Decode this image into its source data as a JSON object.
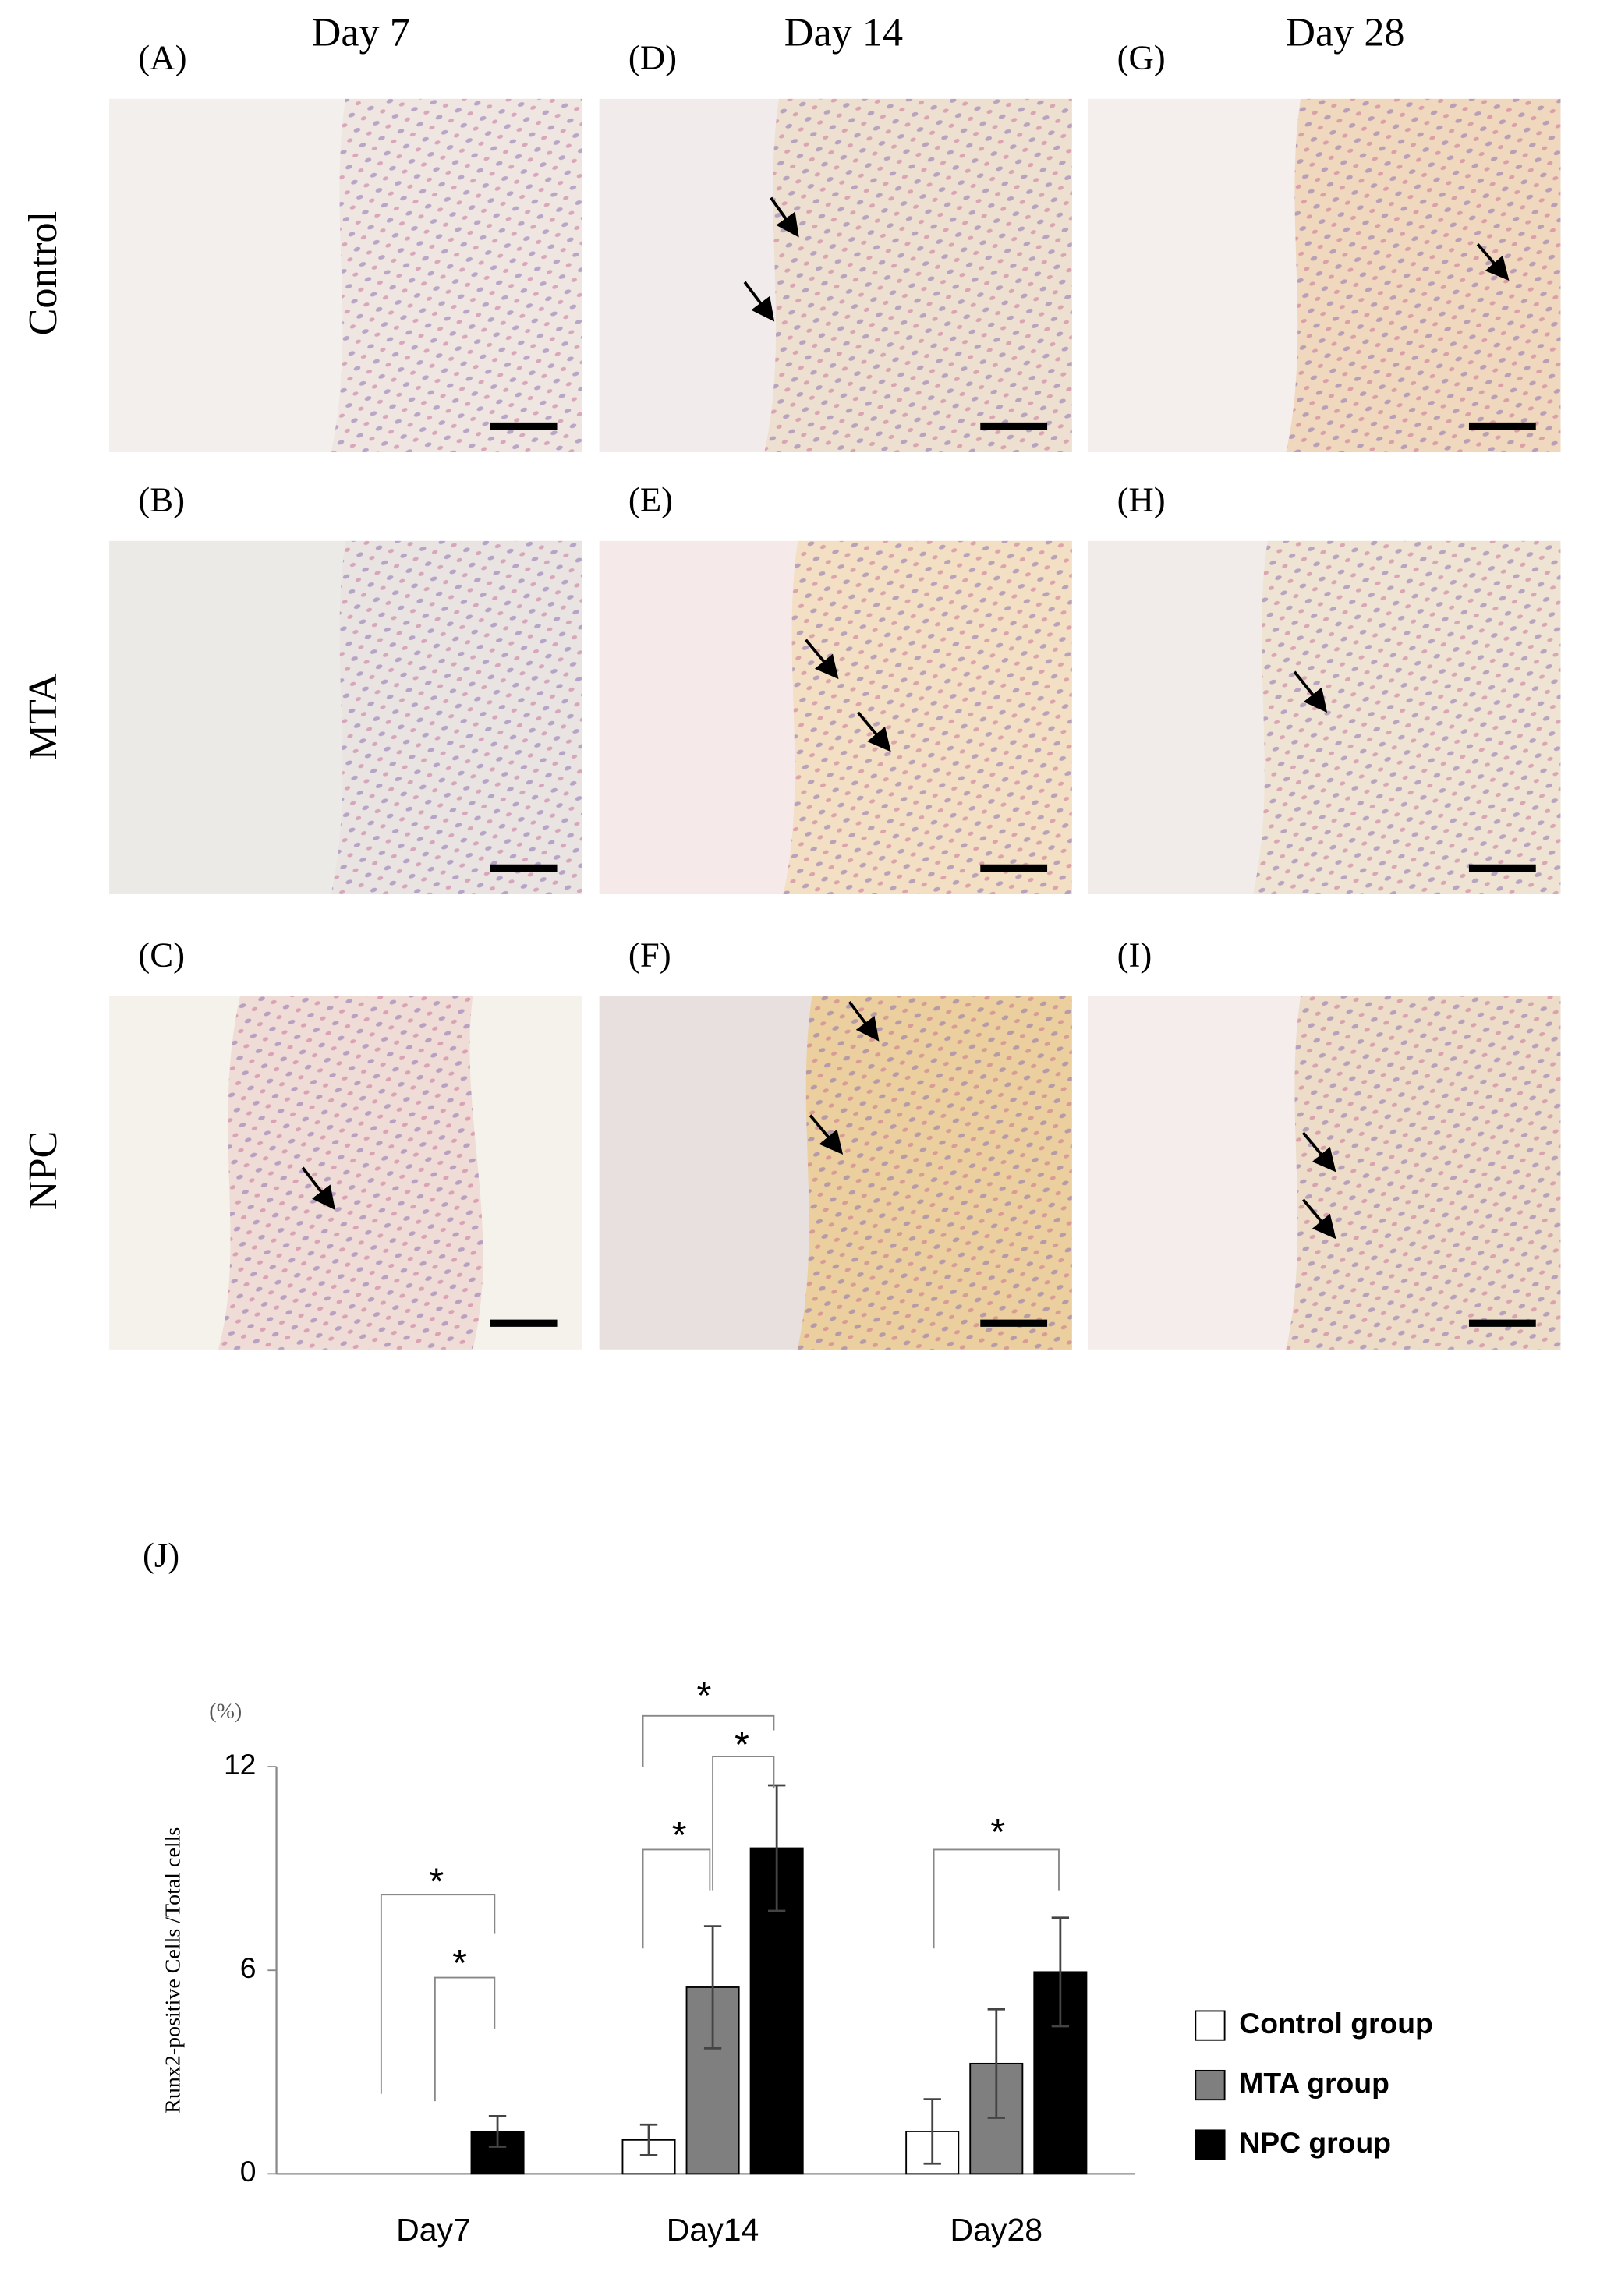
{
  "column_headers": [
    "Day 7",
    "Day 14",
    "Day 28"
  ],
  "row_labels": [
    "Control",
    "MTA",
    "NPC"
  ],
  "panels": [
    [
      "(A)",
      "(B)",
      "(C)"
    ],
    [
      "(D)",
      "(E)",
      "(F)"
    ],
    [
      "(G)",
      "(H)",
      "(I)"
    ]
  ],
  "chart_label": "(J)",
  "chart_data": {
    "type": "bar",
    "y_unit": "(%)",
    "y_label": "Runx2-positive Cells /Total cells",
    "categories": [
      "Day7",
      "Day14",
      "Day28"
    ],
    "series": [
      {
        "name": "Control group",
        "color": "#ffffff",
        "values": [
          0,
          1.0,
          1.25
        ],
        "errors": [
          null,
          0.45,
          0.95
        ]
      },
      {
        "name": "MTA group",
        "color": "#7f7f7f",
        "values": [
          0,
          5.5,
          3.25
        ],
        "errors": [
          null,
          1.8,
          1.6
        ]
      },
      {
        "name": "NPC group",
        "color": "#000000",
        "values": [
          1.25,
          9.6,
          5.95
        ],
        "errors": [
          0.45,
          1.85,
          1.6
        ]
      }
    ],
    "ylim": [
      0,
      12
    ],
    "yticks": [
      0,
      6,
      12
    ],
    "annotations": [
      "*",
      "*",
      "*",
      "*",
      "*",
      "*"
    ]
  }
}
